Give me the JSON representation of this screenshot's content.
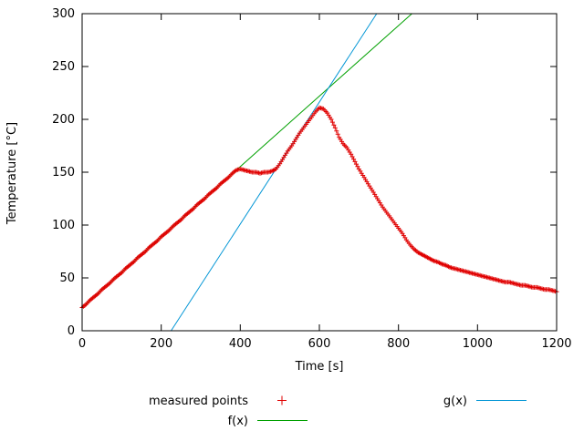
{
  "chart_data": {
    "type": "scatter",
    "title": "",
    "xlabel": "Time [s]",
    "ylabel": "Temperature [°C]",
    "xlim": [
      0,
      1200
    ],
    "ylim": [
      0,
      300
    ],
    "x_ticks": [
      0,
      200,
      400,
      600,
      800,
      1000,
      1200
    ],
    "y_ticks": [
      0,
      50,
      100,
      150,
      200,
      250,
      300
    ],
    "grid": false,
    "legend_position": "below-plot",
    "series": [
      {
        "key": "measured-points",
        "name": "measured points",
        "type": "points",
        "marker": "plus",
        "color": "#e00000",
        "x": [
          0,
          10,
          20,
          30,
          40,
          50,
          60,
          70,
          80,
          90,
          100,
          110,
          120,
          130,
          140,
          150,
          160,
          170,
          180,
          190,
          200,
          210,
          220,
          230,
          240,
          250,
          260,
          270,
          280,
          290,
          300,
          310,
          320,
          330,
          340,
          350,
          360,
          370,
          380,
          390,
          400,
          410,
          420,
          430,
          440,
          450,
          460,
          470,
          480,
          490,
          500,
          510,
          520,
          530,
          540,
          550,
          560,
          570,
          580,
          590,
          600,
          610,
          620,
          630,
          640,
          650,
          660,
          670,
          680,
          690,
          700,
          710,
          720,
          730,
          740,
          750,
          760,
          770,
          780,
          790,
          800,
          810,
          820,
          830,
          840,
          850,
          860,
          870,
          880,
          890,
          900,
          910,
          920,
          930,
          940,
          950,
          960,
          970,
          980,
          990,
          1000,
          1010,
          1020,
          1030,
          1040,
          1050,
          1060,
          1070,
          1080,
          1090,
          1100,
          1110,
          1120,
          1130,
          1140,
          1150,
          1160,
          1170,
          1180,
          1190,
          1200
        ],
        "y": [
          22,
          25,
          29,
          32,
          35,
          39,
          42,
          45,
          49,
          52,
          55,
          59,
          62,
          65,
          69,
          72,
          75,
          79,
          82,
          85,
          89,
          92,
          95,
          99,
          102,
          105,
          109,
          112,
          115,
          119,
          122,
          125,
          129,
          132,
          135,
          139,
          142,
          145,
          149,
          152,
          153,
          152,
          151,
          150,
          150,
          149,
          150,
          150,
          151,
          153,
          158,
          164,
          170,
          175,
          181,
          187,
          192,
          197,
          202,
          207,
          211,
          210,
          206,
          200,
          192,
          183,
          177,
          173,
          167,
          160,
          153,
          147,
          141,
          135,
          129,
          123,
          117,
          112,
          107,
          102,
          97,
          92,
          86,
          81,
          77,
          74,
          72,
          70,
          68,
          66,
          65,
          63,
          62,
          60,
          59,
          58,
          57,
          56,
          55,
          54,
          53,
          52,
          51,
          50,
          49,
          48,
          47,
          46,
          46,
          45,
          44,
          43,
          43,
          42,
          41,
          41,
          40,
          39,
          39,
          38,
          37
        ]
      },
      {
        "key": "f-line",
        "name": "f(x)",
        "type": "line",
        "color": "#00a000",
        "x": [
          0,
          834
        ],
        "y": [
          22,
          300
        ]
      },
      {
        "key": "g-line",
        "name": "g(x)",
        "type": "line",
        "color": "#0095d5",
        "x": [
          225,
          745
        ],
        "y": [
          0,
          300
        ]
      }
    ]
  },
  "colors": {
    "axis": "#000000",
    "background": "#ffffff",
    "measured": "#e00000",
    "f_line": "#00a000",
    "g_line": "#0095d5"
  }
}
